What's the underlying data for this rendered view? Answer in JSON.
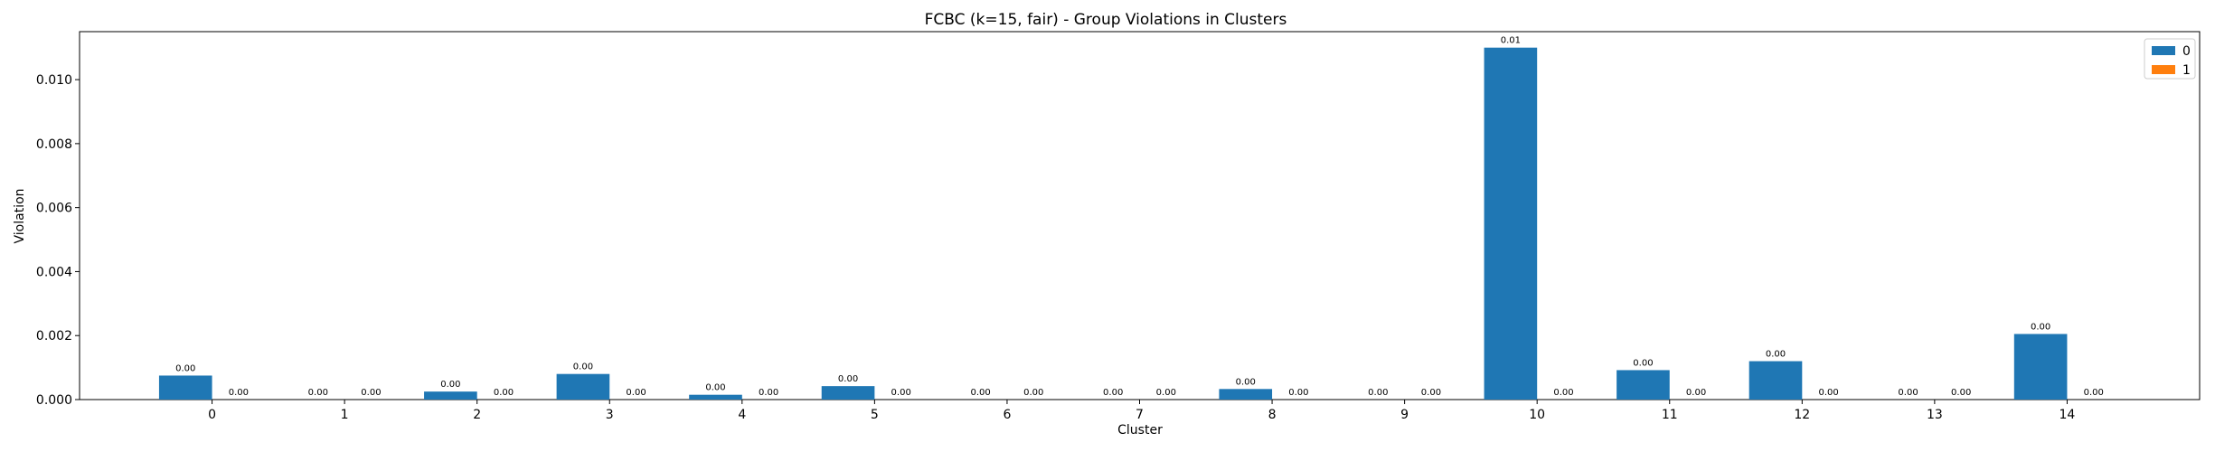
{
  "chart_data": {
    "type": "bar",
    "title": "FCBC (k=15, fair) - Group Violations in Clusters",
    "xlabel": "Cluster",
    "ylabel": "Violation",
    "categories": [
      "0",
      "1",
      "2",
      "3",
      "4",
      "5",
      "6",
      "7",
      "8",
      "9",
      "10",
      "11",
      "12",
      "13",
      "14"
    ],
    "ylim": [
      0,
      0.0115
    ],
    "yticks": [
      "0.000",
      "0.002",
      "0.004",
      "0.006",
      "0.008",
      "0.010"
    ],
    "legend_position": "top-right",
    "grid": false,
    "series": [
      {
        "name": "0",
        "color": "#1f77b4",
        "values": [
          0.00075,
          0,
          0.00025,
          0.0008,
          0.00015,
          0.00042,
          0,
          0,
          0.00033,
          0,
          0.011,
          0.00092,
          0.0012,
          0,
          0.00205
        ],
        "labels": [
          "0.00",
          "0.00",
          "0.00",
          "0.00",
          "0.00",
          "0.00",
          "0.00",
          "0.00",
          "0.00",
          "0.00",
          "0.01",
          "0.00",
          "0.00",
          "0.00",
          "0.00"
        ]
      },
      {
        "name": "1",
        "color": "#ff7f0e",
        "values": [
          0,
          0,
          0,
          0,
          0,
          0,
          0,
          0,
          0,
          0,
          0,
          0,
          0,
          0,
          0
        ],
        "labels": [
          "0.00",
          "0.00",
          "0.00",
          "0.00",
          "0.00",
          "0.00",
          "0.00",
          "0.00",
          "0.00",
          "0.00",
          "0.00",
          "0.00",
          "0.00",
          "0.00",
          "0.00"
        ]
      }
    ]
  }
}
